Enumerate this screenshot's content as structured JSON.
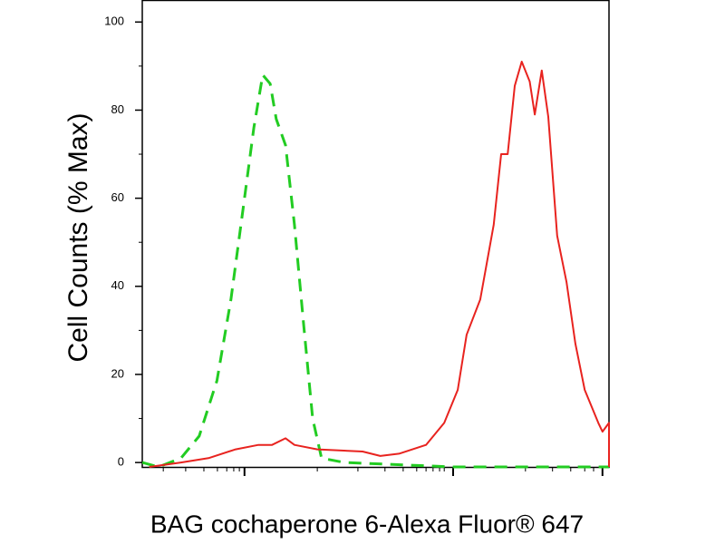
{
  "chart_data": {
    "type": "line",
    "y_label": "Cell Counts (% Max)",
    "x_label": "BAG cochaperone 6-Alexa Fluor® 647",
    "xlim": [
      0,
      100
    ],
    "ylim": [
      -1,
      105
    ],
    "yticks": [
      0,
      20,
      40,
      60,
      80,
      100
    ],
    "yminorticks": [
      10,
      30,
      50,
      70,
      90
    ],
    "xticks": [
      21.9,
      66.6,
      98.6
    ],
    "xminorticks": [
      4.5,
      9.3,
      13.2,
      16.1,
      18.1,
      19.6,
      20.8,
      37.5,
      46.2,
      52.0,
      55.9,
      58.8,
      60.8,
      62.3,
      63.7,
      64.7,
      82.1,
      87.9,
      91.8,
      94.8,
      96.7
    ],
    "series": [
      {
        "color": "#22cc22",
        "dash": true,
        "x": [
          0,
          3.5,
          8.3,
          12.2,
          16,
          19,
          21.9,
          23.9,
          25.8,
          27.4,
          28.7,
          30.7,
          32.6,
          34.6,
          36.5,
          38.4,
          43.3,
          66.6,
          100
        ],
        "values": [
          0,
          -1,
          1,
          6,
          18.6,
          37,
          60,
          76,
          88,
          86,
          78,
          72,
          54,
          31,
          10,
          1,
          0,
          -1,
          -1
        ]
      },
      {
        "color": "#e8231f",
        "dash": false,
        "x": [
          1.5,
          8.3,
          14.2,
          20,
          24.9,
          27.8,
          30.7,
          32.6,
          37.5,
          47.2,
          51,
          55,
          60.8,
          64.7,
          67.6,
          69.5,
          72.4,
          75.3,
          76.9,
          78.3,
          79.8,
          81.3,
          83,
          84.1,
          85.6,
          87,
          88.9,
          90.9,
          92.8,
          94.8,
          97.7,
          98.6,
          100,
          100
        ],
        "values": [
          -1,
          0,
          1,
          3,
          4,
          4,
          5.5,
          4,
          3,
          2.5,
          1.5,
          2,
          4,
          9,
          16.5,
          29,
          37,
          54,
          70,
          70,
          85.5,
          91,
          86.5,
          79,
          89,
          78.5,
          51.5,
          41,
          27,
          16.5,
          9,
          7,
          9,
          -1
        ]
      }
    ]
  }
}
